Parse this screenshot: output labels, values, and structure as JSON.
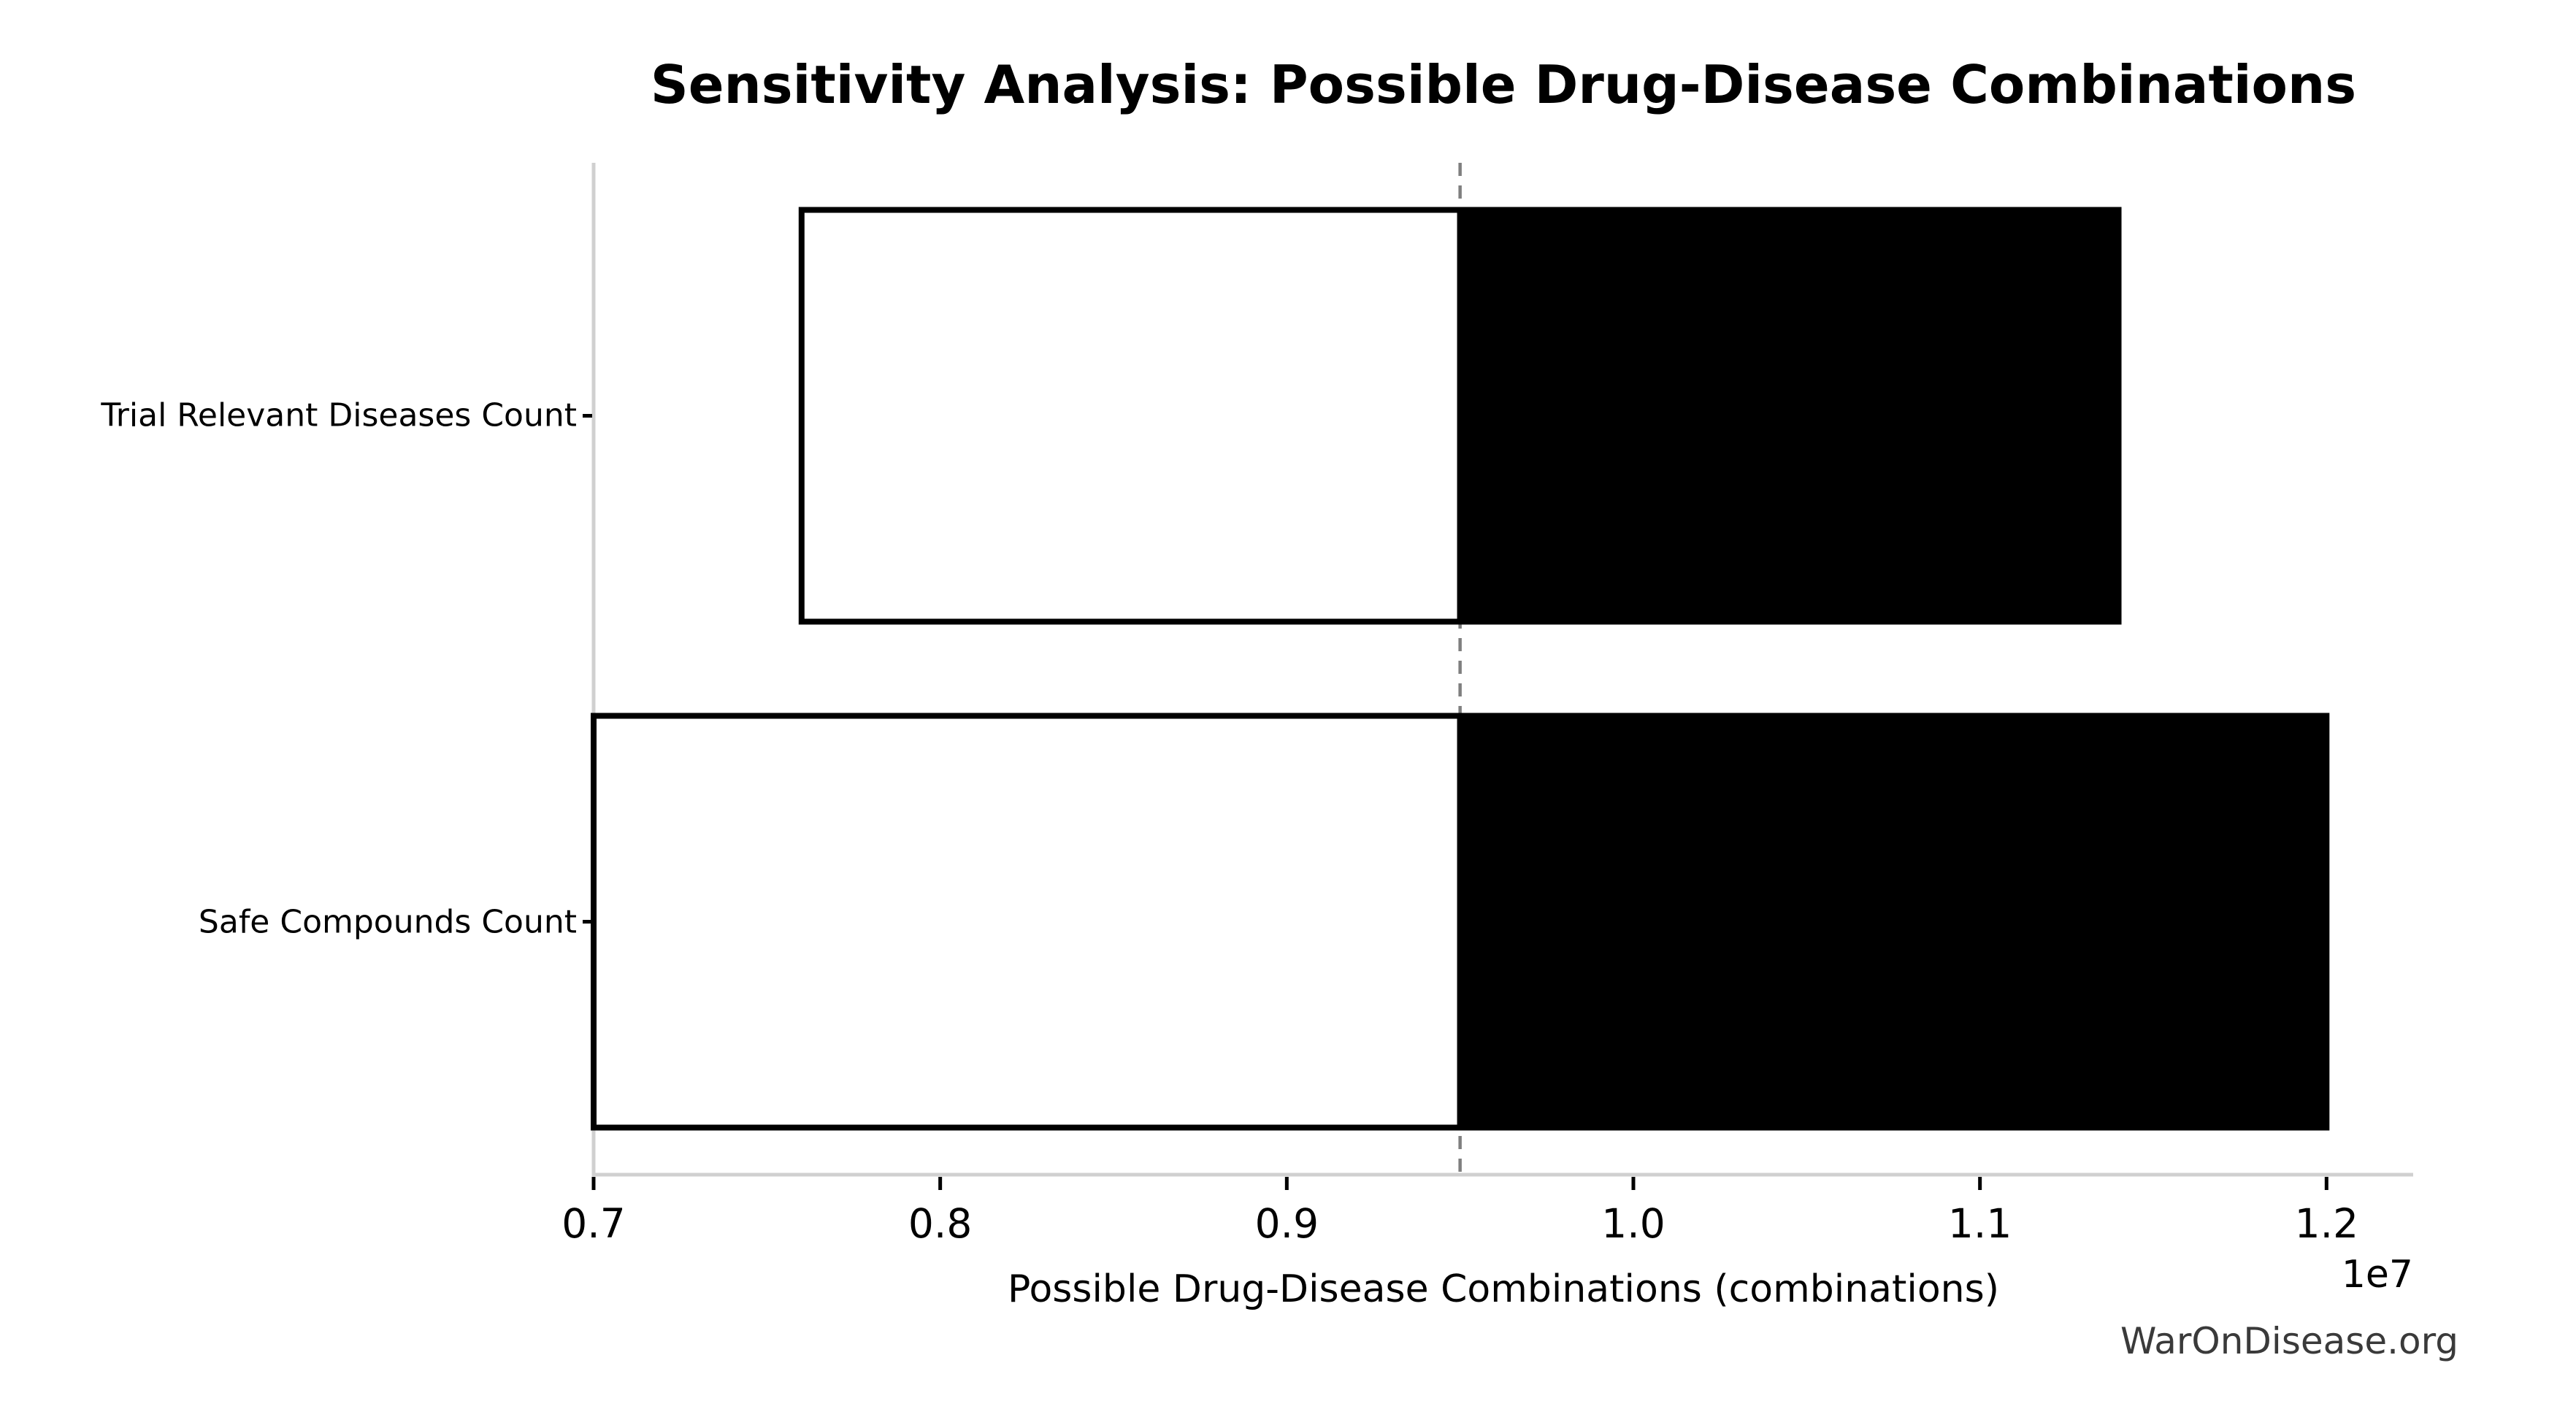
{
  "page": {
    "background_color": "#ffffff"
  },
  "chart_data": {
    "type": "bar",
    "variant": "tornado-sensitivity",
    "orientation": "horizontal",
    "title": "Sensitivity Analysis: Possible Drug-Disease Combinations",
    "xlabel": "Possible Drug-Disease Combinations (combinations)",
    "axis_offset_label": "1e7",
    "watermark": "WarOnDisease.org",
    "baseline_value": 9500000,
    "categories": [
      "Trial Relevant Diseases Count",
      "Safe Compounds Count"
    ],
    "bars": [
      {
        "label": "Trial Relevant Diseases Count",
        "low": 7600000,
        "high": 11400000
      },
      {
        "label": "Safe Compounds Count",
        "low": 7000000,
        "high": 12000000
      }
    ],
    "x_ticks": [
      {
        "value": 7000000,
        "label": "0.7"
      },
      {
        "value": 8000000,
        "label": "0.8"
      },
      {
        "value": 9000000,
        "label": "0.9"
      },
      {
        "value": 10000000,
        "label": "1.0"
      },
      {
        "value": 11000000,
        "label": "1.1"
      },
      {
        "value": 12000000,
        "label": "1.2"
      }
    ],
    "xlim": [
      7000000,
      12250000
    ],
    "grid": "off",
    "legend": "none",
    "colors": {
      "low_fill": "#ffffff",
      "high_fill": "#000000",
      "edge": "#000000",
      "baseline_line": "#7f7f7f",
      "spine": "#d0d0d0",
      "tick_mark": "#000000",
      "tick_label": "#000000",
      "watermark": "#3a3a3a"
    }
  }
}
